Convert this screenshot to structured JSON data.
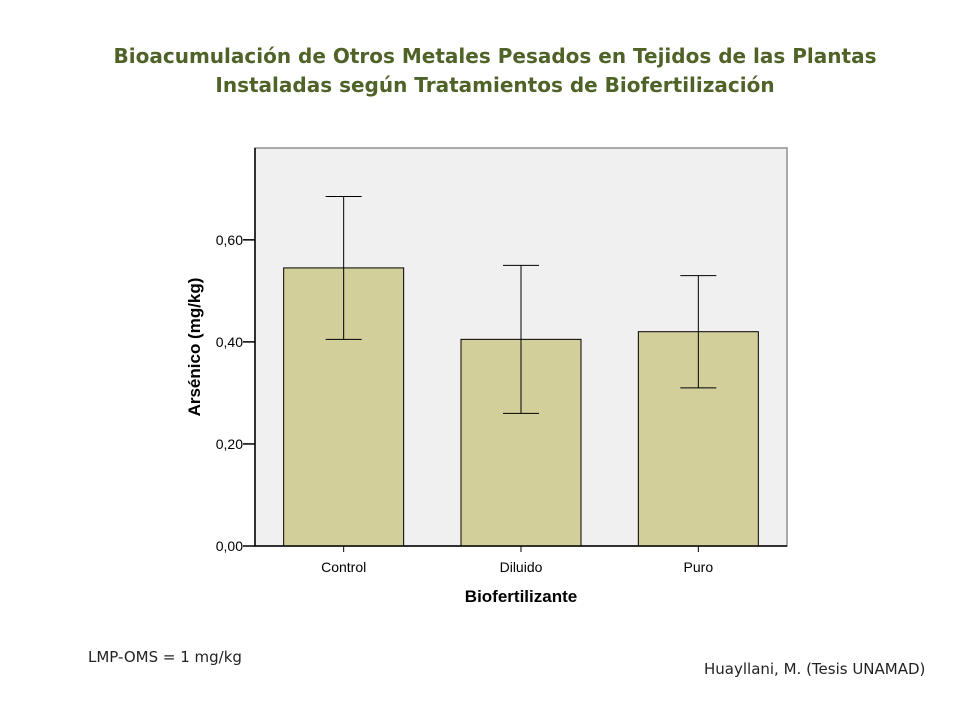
{
  "title_lines": [
    "Bioacumulación de Otros Metales Pesados en Tejidos de las Plantas",
    "Instaladas según Tratamientos de Biofertilización"
  ],
  "chart_data": {
    "type": "bar",
    "categories": [
      "Control",
      "Diluido",
      "Puro"
    ],
    "values": [
      0.545,
      0.405,
      0.42
    ],
    "error_bars": [
      {
        "low": 0.405,
        "high": 0.685
      },
      {
        "low": 0.26,
        "high": 0.55
      },
      {
        "low": 0.31,
        "high": 0.53
      }
    ],
    "xlabel": "Biofertilizante",
    "ylabel": "Arsénico (mg/kg)",
    "ylim": [
      0,
      0.78
    ],
    "yticks": [
      0,
      0.2,
      0.4,
      0.6
    ],
    "ytick_labels": [
      "0,00",
      "0,20",
      "0,40",
      "0,60"
    ],
    "grid": false,
    "colors": {
      "bar_fill": "#d3cf9a",
      "bar_stroke": "#000000",
      "plot_bg": "#f0f0f0",
      "frame": "#909090",
      "title": "#4f6228"
    }
  },
  "footnotes": {
    "left": "LMP-OMS = 1 mg/kg",
    "right": "Huayllani, M. (Tesis UNAMAD)"
  }
}
